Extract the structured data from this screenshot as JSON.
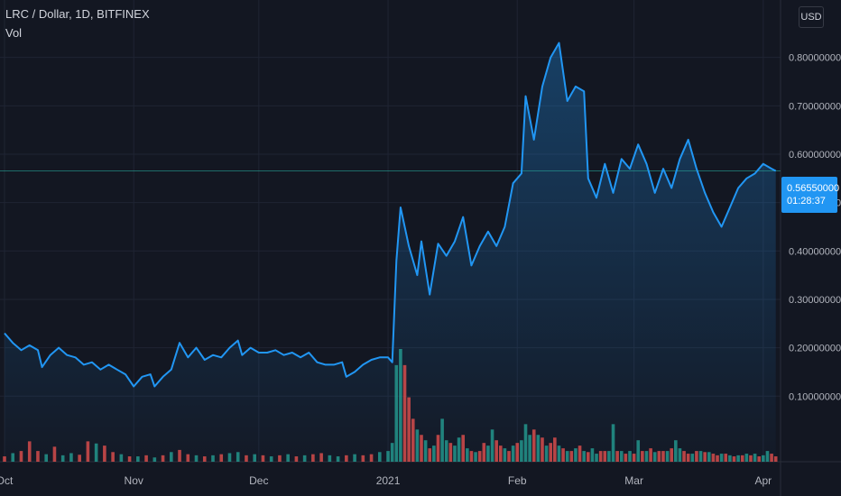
{
  "legend": {
    "symbol_line": "LRC / Dollar, 1D, BITFINEX",
    "indicator": "Vol"
  },
  "currency_button": "USD",
  "last_price": {
    "price": "0.56550000",
    "countdown": "01:28:37"
  },
  "colors": {
    "background": "#131722",
    "grid": "#1f2433",
    "line": "#2196f3",
    "vol_up": "#26a69a",
    "vol_down": "#ef5350",
    "axis_text": "#b2b5be",
    "price_tag": "#2196f3"
  },
  "chart_data": {
    "type": "area",
    "title": "LRC / Dollar, 1D, BITFINEX",
    "ylim": [
      0.0,
      0.9
    ],
    "y_ticks": [
      "0.10000000",
      "0.20000000",
      "0.30000000",
      "0.40000000",
      "0.50000000",
      "0.60000000",
      "0.70000000",
      "0.80000000"
    ],
    "x_ticks": [
      {
        "label": "Oct",
        "day": 0
      },
      {
        "label": "Nov",
        "day": 31
      },
      {
        "label": "Dec",
        "day": 61
      },
      {
        "label": "2021",
        "day": 92
      },
      {
        "label": "Feb",
        "day": 123
      },
      {
        "label": "Mar",
        "day": 151
      },
      {
        "label": "Apr",
        "day": 182
      }
    ],
    "price_line": 0.5655,
    "series": [
      {
        "name": "LRC / Dollar",
        "points": [
          [
            0,
            0.23
          ],
          [
            2,
            0.21
          ],
          [
            4,
            0.195
          ],
          [
            6,
            0.205
          ],
          [
            8,
            0.195
          ],
          [
            9,
            0.16
          ],
          [
            11,
            0.185
          ],
          [
            13,
            0.2
          ],
          [
            15,
            0.185
          ],
          [
            17,
            0.18
          ],
          [
            19,
            0.165
          ],
          [
            21,
            0.17
          ],
          [
            23,
            0.155
          ],
          [
            25,
            0.165
          ],
          [
            27,
            0.155
          ],
          [
            29,
            0.145
          ],
          [
            31,
            0.12
          ],
          [
            33,
            0.14
          ],
          [
            35,
            0.145
          ],
          [
            36,
            0.12
          ],
          [
            38,
            0.14
          ],
          [
            40,
            0.155
          ],
          [
            42,
            0.21
          ],
          [
            44,
            0.18
          ],
          [
            46,
            0.2
          ],
          [
            48,
            0.175
          ],
          [
            50,
            0.185
          ],
          [
            52,
            0.18
          ],
          [
            54,
            0.2
          ],
          [
            56,
            0.215
          ],
          [
            57,
            0.185
          ],
          [
            59,
            0.2
          ],
          [
            61,
            0.19
          ],
          [
            63,
            0.19
          ],
          [
            65,
            0.195
          ],
          [
            67,
            0.185
          ],
          [
            69,
            0.19
          ],
          [
            71,
            0.18
          ],
          [
            73,
            0.19
          ],
          [
            75,
            0.17
          ],
          [
            77,
            0.165
          ],
          [
            79,
            0.165
          ],
          [
            81,
            0.17
          ],
          [
            82,
            0.14
          ],
          [
            84,
            0.15
          ],
          [
            86,
            0.165
          ],
          [
            88,
            0.175
          ],
          [
            90,
            0.18
          ],
          [
            92,
            0.18
          ],
          [
            93,
            0.17
          ],
          [
            94,
            0.38
          ],
          [
            95,
            0.49
          ],
          [
            97,
            0.41
          ],
          [
            99,
            0.35
          ],
          [
            100,
            0.42
          ],
          [
            102,
            0.31
          ],
          [
            104,
            0.415
          ],
          [
            106,
            0.39
          ],
          [
            108,
            0.42
          ],
          [
            110,
            0.47
          ],
          [
            112,
            0.37
          ],
          [
            114,
            0.41
          ],
          [
            116,
            0.44
          ],
          [
            118,
            0.41
          ],
          [
            120,
            0.45
          ],
          [
            122,
            0.54
          ],
          [
            124,
            0.56
          ],
          [
            125,
            0.72
          ],
          [
            127,
            0.63
          ],
          [
            129,
            0.74
          ],
          [
            131,
            0.8
          ],
          [
            133,
            0.83
          ],
          [
            135,
            0.71
          ],
          [
            137,
            0.74
          ],
          [
            139,
            0.73
          ],
          [
            140,
            0.55
          ],
          [
            142,
            0.51
          ],
          [
            144,
            0.58
          ],
          [
            146,
            0.52
          ],
          [
            148,
            0.59
          ],
          [
            150,
            0.57
          ],
          [
            152,
            0.62
          ],
          [
            154,
            0.58
          ],
          [
            156,
            0.52
          ],
          [
            158,
            0.57
          ],
          [
            160,
            0.53
          ],
          [
            162,
            0.59
          ],
          [
            164,
            0.63
          ],
          [
            166,
            0.57
          ],
          [
            168,
            0.52
          ],
          [
            170,
            0.48
          ],
          [
            172,
            0.45
          ],
          [
            174,
            0.49
          ],
          [
            176,
            0.53
          ],
          [
            178,
            0.55
          ],
          [
            180,
            0.56
          ],
          [
            182,
            0.58
          ],
          [
            184,
            0.57
          ],
          [
            185,
            0.5655
          ]
        ]
      },
      {
        "name": "Vol",
        "values": [
          [
            0,
            0.01,
            "d"
          ],
          [
            2,
            0.016,
            "u"
          ],
          [
            4,
            0.02,
            "d"
          ],
          [
            6,
            0.038,
            "d"
          ],
          [
            8,
            0.02,
            "d"
          ],
          [
            10,
            0.014,
            "u"
          ],
          [
            12,
            0.028,
            "d"
          ],
          [
            14,
            0.012,
            "u"
          ],
          [
            16,
            0.016,
            "u"
          ],
          [
            18,
            0.013,
            "d"
          ],
          [
            20,
            0.038,
            "d"
          ],
          [
            22,
            0.034,
            "u"
          ],
          [
            24,
            0.03,
            "d"
          ],
          [
            26,
            0.018,
            "d"
          ],
          [
            28,
            0.014,
            "u"
          ],
          [
            30,
            0.01,
            "d"
          ],
          [
            32,
            0.01,
            "u"
          ],
          [
            34,
            0.012,
            "d"
          ],
          [
            36,
            0.008,
            "u"
          ],
          [
            38,
            0.012,
            "d"
          ],
          [
            40,
            0.018,
            "u"
          ],
          [
            42,
            0.022,
            "d"
          ],
          [
            44,
            0.014,
            "d"
          ],
          [
            46,
            0.012,
            "u"
          ],
          [
            48,
            0.01,
            "d"
          ],
          [
            50,
            0.012,
            "u"
          ],
          [
            52,
            0.014,
            "d"
          ],
          [
            54,
            0.016,
            "u"
          ],
          [
            56,
            0.018,
            "u"
          ],
          [
            58,
            0.012,
            "d"
          ],
          [
            60,
            0.014,
            "u"
          ],
          [
            62,
            0.012,
            "d"
          ],
          [
            64,
            0.01,
            "u"
          ],
          [
            66,
            0.012,
            "d"
          ],
          [
            68,
            0.014,
            "u"
          ],
          [
            70,
            0.01,
            "d"
          ],
          [
            72,
            0.012,
            "u"
          ],
          [
            74,
            0.014,
            "d"
          ],
          [
            76,
            0.016,
            "d"
          ],
          [
            78,
            0.012,
            "u"
          ],
          [
            80,
            0.01,
            "u"
          ],
          [
            82,
            0.012,
            "d"
          ],
          [
            84,
            0.014,
            "u"
          ],
          [
            86,
            0.012,
            "d"
          ],
          [
            88,
            0.014,
            "d"
          ],
          [
            90,
            0.018,
            "u"
          ],
          [
            92,
            0.02,
            "u"
          ],
          [
            93,
            0.035,
            "u"
          ],
          [
            94,
            0.18,
            "u"
          ],
          [
            95,
            0.21,
            "u"
          ],
          [
            96,
            0.18,
            "d"
          ],
          [
            97,
            0.12,
            "d"
          ],
          [
            98,
            0.08,
            "d"
          ],
          [
            99,
            0.06,
            "u"
          ],
          [
            100,
            0.05,
            "d"
          ],
          [
            101,
            0.04,
            "u"
          ],
          [
            102,
            0.025,
            "d"
          ],
          [
            103,
            0.03,
            "u"
          ],
          [
            104,
            0.05,
            "d"
          ],
          [
            105,
            0.08,
            "u"
          ],
          [
            106,
            0.04,
            "u"
          ],
          [
            107,
            0.035,
            "d"
          ],
          [
            108,
            0.03,
            "u"
          ],
          [
            109,
            0.045,
            "u"
          ],
          [
            110,
            0.05,
            "d"
          ],
          [
            111,
            0.025,
            "u"
          ],
          [
            112,
            0.02,
            "d"
          ],
          [
            113,
            0.018,
            "u"
          ],
          [
            114,
            0.02,
            "d"
          ],
          [
            115,
            0.035,
            "d"
          ],
          [
            116,
            0.03,
            "u"
          ],
          [
            117,
            0.06,
            "u"
          ],
          [
            118,
            0.04,
            "d"
          ],
          [
            119,
            0.03,
            "d"
          ],
          [
            120,
            0.025,
            "u"
          ],
          [
            121,
            0.02,
            "d"
          ],
          [
            122,
            0.03,
            "u"
          ],
          [
            123,
            0.035,
            "d"
          ],
          [
            124,
            0.04,
            "u"
          ],
          [
            125,
            0.07,
            "u"
          ],
          [
            126,
            0.05,
            "u"
          ],
          [
            127,
            0.06,
            "d"
          ],
          [
            128,
            0.05,
            "u"
          ],
          [
            129,
            0.045,
            "d"
          ],
          [
            130,
            0.03,
            "u"
          ],
          [
            131,
            0.035,
            "d"
          ],
          [
            132,
            0.045,
            "d"
          ],
          [
            133,
            0.03,
            "u"
          ],
          [
            134,
            0.025,
            "d"
          ],
          [
            135,
            0.02,
            "u"
          ],
          [
            136,
            0.02,
            "d"
          ],
          [
            137,
            0.025,
            "u"
          ],
          [
            138,
            0.03,
            "d"
          ],
          [
            139,
            0.02,
            "u"
          ],
          [
            140,
            0.018,
            "d"
          ],
          [
            141,
            0.025,
            "u"
          ],
          [
            142,
            0.015,
            "u"
          ],
          [
            143,
            0.02,
            "d"
          ],
          [
            144,
            0.02,
            "d"
          ],
          [
            145,
            0.02,
            "u"
          ],
          [
            146,
            0.07,
            "u"
          ],
          [
            147,
            0.02,
            "d"
          ],
          [
            148,
            0.02,
            "u"
          ],
          [
            149,
            0.015,
            "d"
          ],
          [
            150,
            0.02,
            "u"
          ],
          [
            151,
            0.015,
            "d"
          ],
          [
            152,
            0.04,
            "u"
          ],
          [
            153,
            0.02,
            "d"
          ],
          [
            154,
            0.02,
            "u"
          ],
          [
            155,
            0.025,
            "d"
          ],
          [
            156,
            0.018,
            "u"
          ],
          [
            157,
            0.02,
            "d"
          ],
          [
            158,
            0.02,
            "d"
          ],
          [
            159,
            0.02,
            "u"
          ],
          [
            160,
            0.025,
            "d"
          ],
          [
            161,
            0.04,
            "u"
          ],
          [
            162,
            0.025,
            "u"
          ],
          [
            163,
            0.02,
            "d"
          ],
          [
            164,
            0.015,
            "d"
          ],
          [
            165,
            0.015,
            "u"
          ],
          [
            166,
            0.02,
            "d"
          ],
          [
            167,
            0.02,
            "u"
          ],
          [
            168,
            0.018,
            "d"
          ],
          [
            169,
            0.018,
            "u"
          ],
          [
            170,
            0.015,
            "d"
          ],
          [
            171,
            0.012,
            "d"
          ],
          [
            172,
            0.015,
            "u"
          ],
          [
            173,
            0.015,
            "d"
          ],
          [
            174,
            0.012,
            "u"
          ],
          [
            175,
            0.01,
            "d"
          ],
          [
            176,
            0.012,
            "u"
          ],
          [
            177,
            0.012,
            "d"
          ],
          [
            178,
            0.015,
            "u"
          ],
          [
            179,
            0.012,
            "d"
          ],
          [
            180,
            0.015,
            "u"
          ],
          [
            181,
            0.01,
            "d"
          ],
          [
            182,
            0.012,
            "u"
          ],
          [
            183,
            0.02,
            "u"
          ],
          [
            184,
            0.015,
            "d"
          ],
          [
            185,
            0.01,
            "d"
          ]
        ]
      }
    ],
    "grid": true,
    "legend_position": "top-left"
  }
}
